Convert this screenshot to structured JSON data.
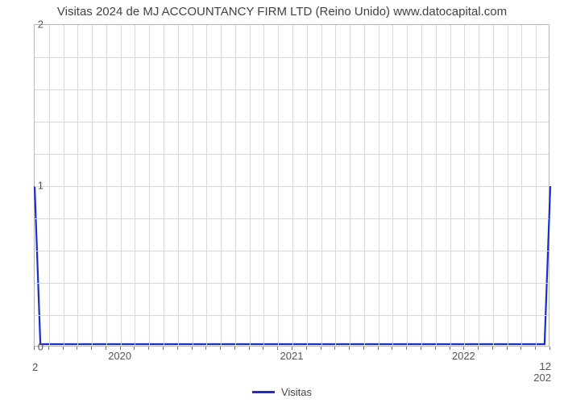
{
  "chart": {
    "type": "line",
    "title": "Visitas 2024 de MJ ACCOUNTANCY FIRM LTD (Reino Unido) www.datocapital.com",
    "title_fontsize": 15,
    "title_color": "#424242",
    "background_color": "#ffffff",
    "grid_color": "#d9d9d9",
    "axis_border_color": "#b8b8b8",
    "tick_label_color": "#555555",
    "tick_label_fontsize": 13,
    "y": {
      "lim": [
        0,
        2
      ],
      "major_ticks": [
        0,
        1,
        2
      ],
      "minor_step": 0.2
    },
    "x": {
      "lim": [
        0,
        36
      ],
      "major_ticks": [
        {
          "pos": 6,
          "label": "2020"
        },
        {
          "pos": 18,
          "label": "2021"
        },
        {
          "pos": 30,
          "label": "2022"
        }
      ],
      "minor_positions": [
        0,
        1,
        2,
        3,
        4,
        5,
        6,
        7,
        8,
        9,
        10,
        11,
        12,
        13,
        14,
        15,
        16,
        17,
        18,
        19,
        20,
        21,
        22,
        23,
        24,
        25,
        26,
        27,
        28,
        29,
        30,
        31,
        32,
        33,
        34,
        35,
        36
      ],
      "sub_left": "2",
      "sub_right": "12\n202"
    },
    "series": {
      "label": "Visitas",
      "color": "#1a2ecc",
      "line_width": 2.2,
      "points": [
        {
          "x": 0,
          "y": 1.0
        },
        {
          "x": 0.4,
          "y": 0.02
        },
        {
          "x": 35.6,
          "y": 0.02
        },
        {
          "x": 36,
          "y": 1.0
        }
      ]
    },
    "legend": {
      "position": "bottom-center",
      "fontsize": 13
    }
  }
}
